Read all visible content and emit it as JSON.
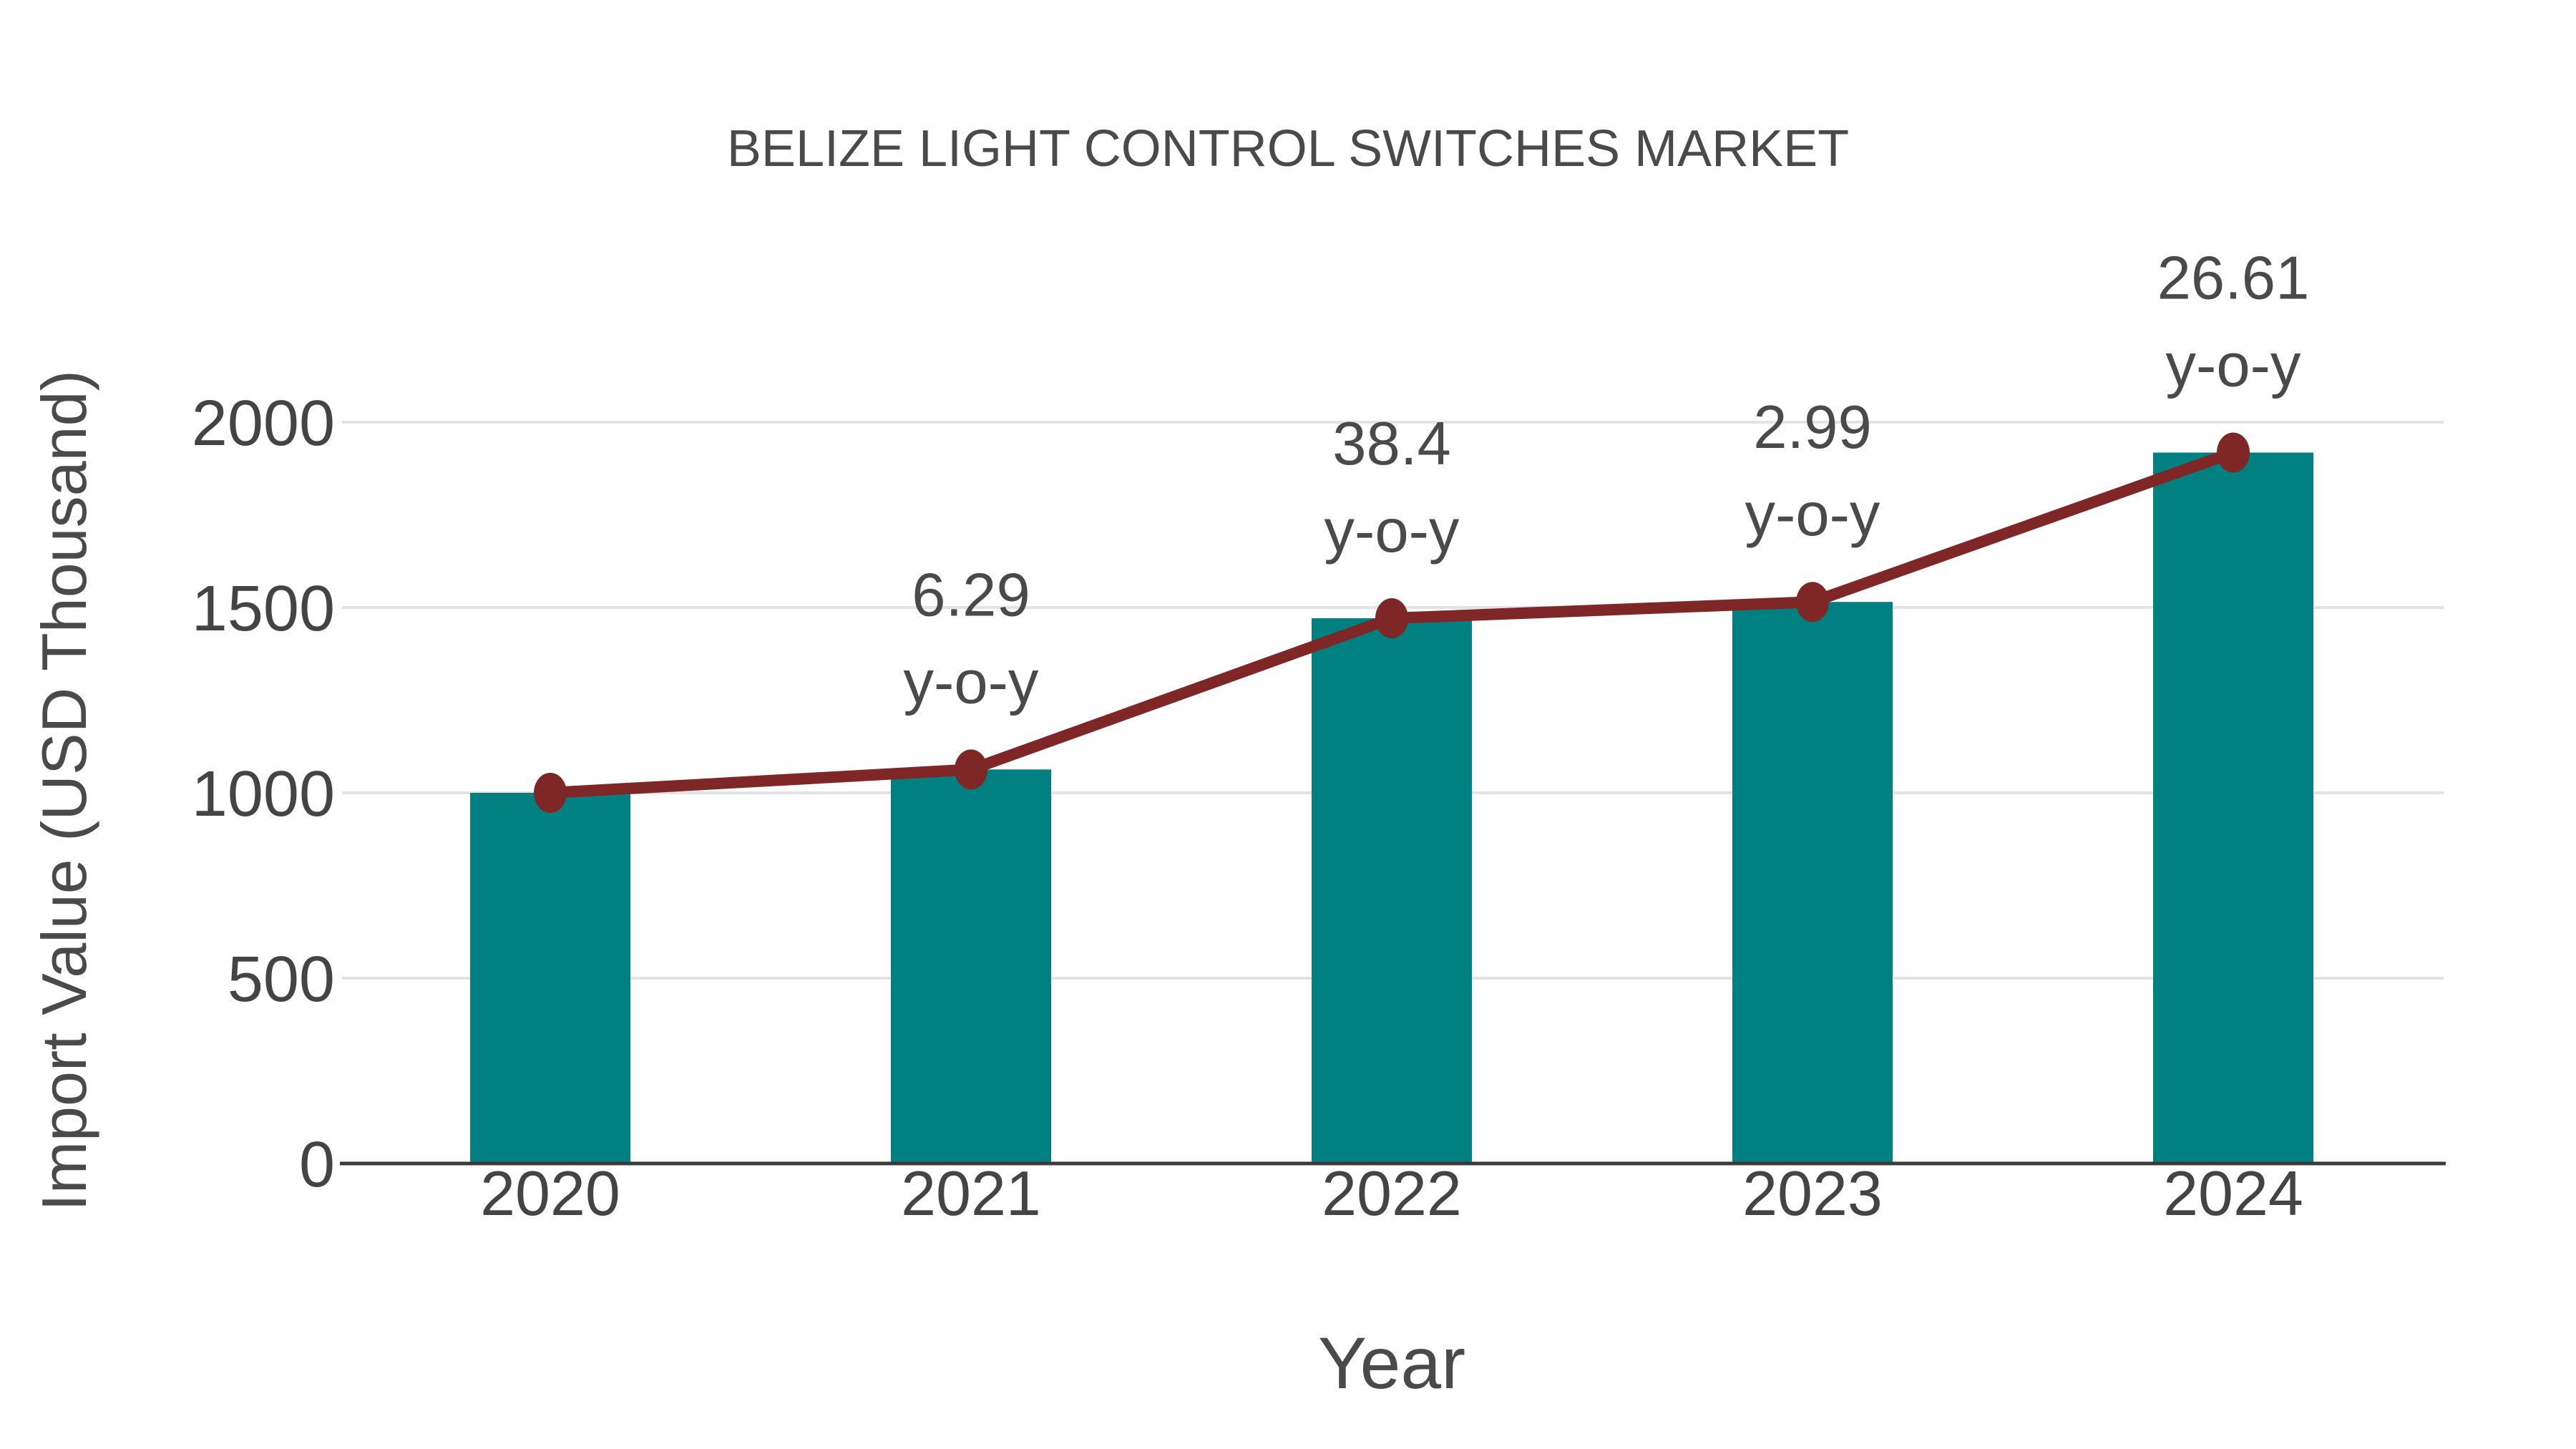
{
  "chart": {
    "title": "BELIZE LIGHT CONTROL SWITCHES MARKET",
    "x_title": "Year",
    "y_title": "Import Value (USD Thousand)"
  },
  "chart_data": {
    "type": "bar",
    "categories": [
      "2020",
      "2021",
      "2022",
      "2023",
      "2024"
    ],
    "series": [
      {
        "name": "Import Value (USD Thousand)",
        "type": "bar",
        "values": [
          1000,
          1063,
          1471,
          1515,
          1918
        ]
      },
      {
        "name": "y-o-y growth (%)",
        "type": "line",
        "values": [
          null,
          6.29,
          38.4,
          2.99,
          26.61
        ],
        "plotted_on": "bar-top levels"
      }
    ],
    "annotation_labels": [
      "",
      "6.29",
      "38.4",
      "2.99",
      "26.61"
    ],
    "annotation_suffix": "y-o-y",
    "title": "BELIZE LIGHT CONTROL SWITCHES MARKET",
    "xlabel": "Year",
    "ylabel": "Import Value (USD Thousand)",
    "ylim": [
      0,
      2000
    ],
    "yticks": [
      0,
      500,
      1000,
      1500,
      2000
    ],
    "grid": true,
    "legend": false
  },
  "style": {
    "bar_color": "#008080",
    "line_color": "#7f2626",
    "marker_color": "#7f2626",
    "grid_color": "#e3e3e3",
    "axis_line_color": "#3a3a3a",
    "tick_text_color": "#444444",
    "annotation_text_color": "#4a4a4a",
    "title_color": "#4a4a4a",
    "background": "#ffffff"
  }
}
